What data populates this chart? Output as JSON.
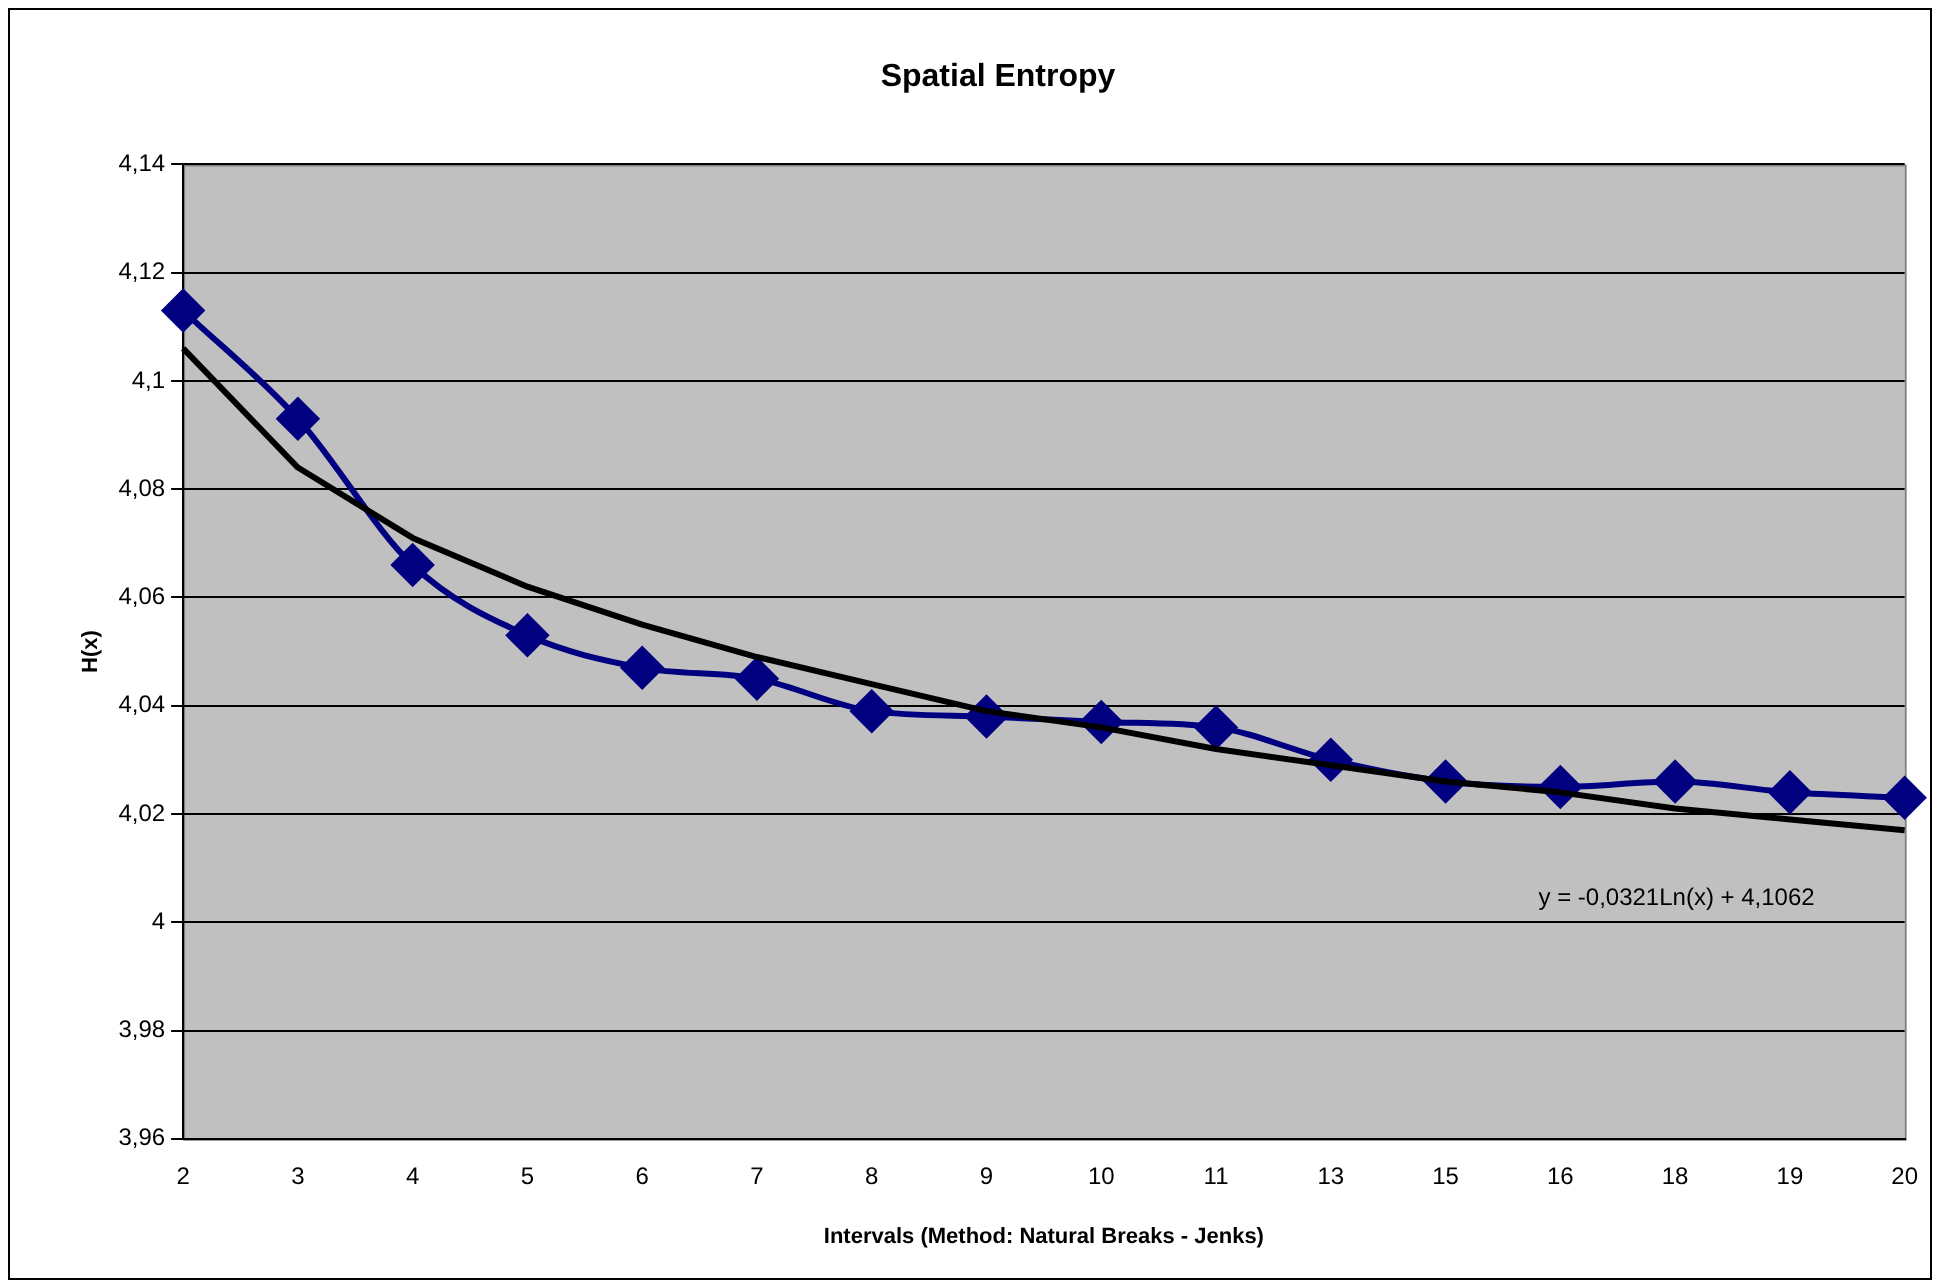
{
  "chart_data": {
    "type": "line",
    "title": "Spatial Entropy",
    "xlabel": "Intervals (Method: Natural Breaks - Jenks)",
    "ylabel": "H(x)",
    "categories": [
      "2",
      "3",
      "4",
      "5",
      "6",
      "7",
      "8",
      "9",
      "10",
      "11",
      "13",
      "15",
      "16",
      "18",
      "19",
      "20"
    ],
    "series": [
      {
        "color": "#000080",
        "marker": "diamond",
        "values": [
          4.113,
          4.093,
          4.066,
          4.053,
          4.047,
          4.045,
          4.039,
          4.038,
          4.037,
          4.036,
          4.03,
          4.026,
          4.025,
          4.026,
          4.024,
          4.023
        ]
      },
      {
        "color": "#000000",
        "marker": "none",
        "values": [
          4.106,
          4.084,
          4.071,
          4.062,
          4.055,
          4.049,
          4.044,
          4.039,
          4.036,
          4.032,
          4.029,
          4.026,
          4.024,
          4.021,
          4.019,
          4.017
        ]
      }
    ],
    "ylim": [
      3.96,
      4.14
    ],
    "yticks": [
      {
        "value": 3.96,
        "label": "3,96"
      },
      {
        "value": 3.98,
        "label": "3,98"
      },
      4,
      {
        "value": 4.02,
        "label": "4,02"
      },
      {
        "value": 4.04,
        "label": "4,04"
      },
      {
        "value": 4.06,
        "label": "4,06"
      },
      {
        "value": 4.08,
        "label": "4,08"
      },
      {
        "value": 4.1,
        "label": "4,1"
      },
      {
        "value": 4.12,
        "label": "4,12"
      },
      {
        "value": 4.14,
        "label": "4,14"
      }
    ],
    "grid": "y",
    "legend": false,
    "annotations": [
      "y = -0,0321Ln(x) + 4,1062"
    ]
  }
}
